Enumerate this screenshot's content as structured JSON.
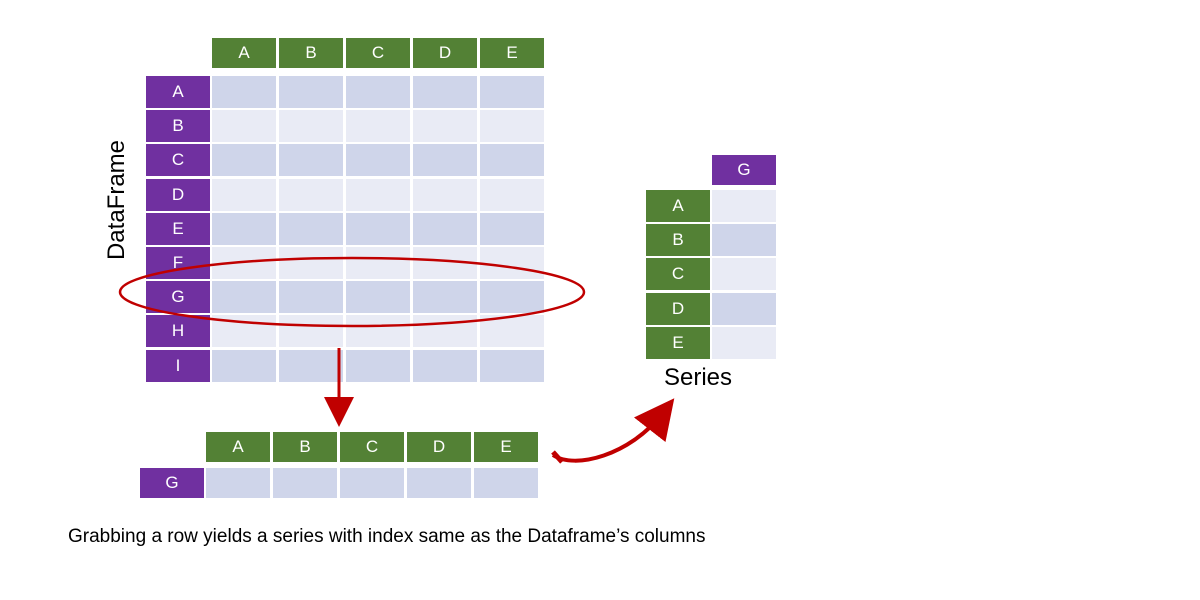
{
  "dataframe": {
    "label": "DataFrame",
    "columns": [
      "A",
      "B",
      "C",
      "D",
      "E"
    ],
    "index": [
      "A",
      "B",
      "C",
      "D",
      "E",
      "F",
      "G",
      "H",
      "I"
    ],
    "highlighted_row": "G"
  },
  "row_extract": {
    "columns": [
      "A",
      "B",
      "C",
      "D",
      "E"
    ],
    "row_label": "G"
  },
  "series": {
    "header": "G",
    "index": [
      "A",
      "B",
      "C",
      "D",
      "E"
    ],
    "label": "Series"
  },
  "caption": "Grabbing a row yields a series with index same as the Dataframe’s columns",
  "colors": {
    "column_header": "#538135",
    "row_header": "#7030a0",
    "cell_dark": "#cfd5ea",
    "cell_light": "#e9ebf5",
    "highlight": "#c00000"
  }
}
